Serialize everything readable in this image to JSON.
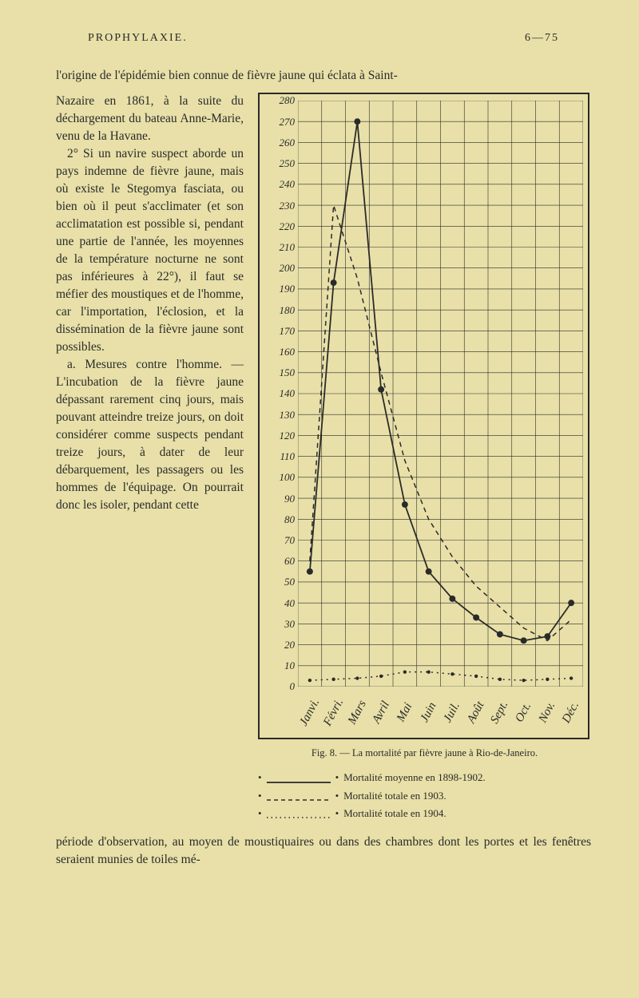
{
  "running_head": {
    "center": "PROPHYLAXIE.",
    "right": "6—75"
  },
  "intro": "l'origine de l'épidémie bien connue de fièvre jaune qui éclata à Saint-",
  "body_paragraphs": [
    "Nazaire en 1861, à la suite du déchargement du bateau Anne-Marie, venu de la Havane.",
    "2° Si un navire suspect aborde un pays indemne de fièvre jaune, mais où existe le Stegomya fasciata, ou bien où il peut s'acclimater (et son acclimatation est possible si, pendant une partie de l'année, les moyennes de la température nocturne ne sont pas inférieures à 22°), il faut se méfier des moustiques et de l'homme, car l'importation, l'éclosion, et la dissémination de la fièvre jaune sont possibles.",
    "a. Mesures contre l'homme. — L'incubation de la fièvre jaune dépassant rarement cinq jours, mais pouvant atteindre treize jours, on doit considérer comme suspects pendant treize jours, à dater de leur débarquement, les passagers ou les hommes de l'équipage. On pourrait donc les isoler, pendant cette"
  ],
  "tail": "période d'observation, au moyen de moustiquaires ou dans des chambres dont les portes et les fenêtres seraient munies de toiles mé-",
  "chart": {
    "type": "line",
    "y_values": [
      280,
      270,
      260,
      250,
      240,
      230,
      220,
      210,
      200,
      190,
      180,
      170,
      160,
      150,
      140,
      130,
      120,
      110,
      100,
      90,
      80,
      70,
      60,
      50,
      40,
      30,
      20,
      10,
      0
    ],
    "y_labels": [
      "280",
      "270",
      "260",
      "250",
      "240",
      "230",
      "220",
      "210",
      "200",
      "190",
      "180",
      "170",
      "160",
      "150",
      "140",
      "130",
      "120",
      "110",
      "100",
      "90",
      "80",
      "70",
      "60",
      "50",
      "40",
      "30",
      "20",
      "10",
      "0"
    ],
    "x_labels": [
      "Janvi.",
      "Févri.",
      "Mars",
      "Avril",
      "Mai",
      "Juin",
      "Juil.",
      "Août",
      "Sept.",
      "Oct.",
      "Nov.",
      "Déc."
    ],
    "ylim": [
      0,
      280
    ],
    "grid_color": "#2a2a2a",
    "background_color": "#e8e0a8",
    "label_font": "cursive-italic",
    "label_fontsize": 13,
    "series": [
      {
        "name": "moyenne",
        "style": "solid-dots",
        "line_color": "#2a2a2a",
        "marker_color": "#2a2a2a",
        "marker_size": 4,
        "values": [
          55,
          193,
          270,
          142,
          87,
          55,
          42,
          33,
          25,
          22,
          24,
          40
        ]
      },
      {
        "name": "totale1903",
        "style": "dashed",
        "line_color": "#2a2a2a",
        "values": [
          60,
          230,
          195,
          150,
          108,
          80,
          62,
          48,
          38,
          28,
          22,
          32
        ]
      },
      {
        "name": "totale1904",
        "style": "small-dots",
        "line_color": "#2a2a2a",
        "marker_size": 2.2,
        "values": [
          3,
          3.5,
          4,
          5,
          7,
          7,
          6,
          5,
          3.5,
          3,
          3.5,
          4
        ]
      }
    ]
  },
  "caption": "Fig. 8. — La mortalité par fièvre jaune à Rio-de-Janeiro.",
  "legend": [
    {
      "style": "solid-dots",
      "text": "Mortalité moyenne en 1898-1902."
    },
    {
      "style": "dashed",
      "text": "Mortalité totale en 1903."
    },
    {
      "style": "small-dots",
      "text": "Mortalité totale en 1904."
    }
  ],
  "colors": {
    "page_bg": "#e8e0a8",
    "ink": "#2a2a2a"
  }
}
